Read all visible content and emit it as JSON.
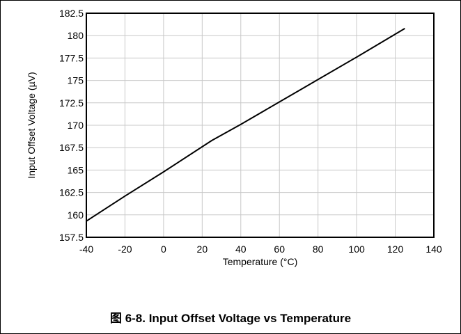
{
  "caption": "图 6-8. Input Offset Voltage vs Temperature",
  "chart_data": {
    "type": "line",
    "title": "",
    "xlabel": "Temperature (°C)",
    "ylabel": "Input Offset Voltage (µV)",
    "xlim": [
      -40,
      140
    ],
    "ylim": [
      157.5,
      182.5
    ],
    "xticks": [
      -40,
      -20,
      0,
      20,
      40,
      60,
      80,
      100,
      120,
      140
    ],
    "yticks": [
      157.5,
      160,
      162.5,
      165,
      167.5,
      170,
      172.5,
      175,
      177.5,
      180,
      182.5
    ],
    "xtick_labels": [
      "-40",
      "-20",
      "0",
      "20",
      "40",
      "60",
      "80",
      "100",
      "120",
      "140"
    ],
    "ytick_labels": [
      "157.5",
      "160",
      "162.5",
      "165",
      "167.5",
      "170",
      "172.5",
      "175",
      "177.5",
      "180",
      "182.5"
    ],
    "grid": true,
    "series": [
      {
        "color": "#000000",
        "x": [
          -40,
          -20,
          0,
          25,
          40,
          60,
          80,
          100,
          125
        ],
        "y": [
          159.3,
          162.1,
          164.8,
          168.3,
          170.1,
          172.6,
          175.1,
          177.6,
          180.8
        ]
      }
    ]
  }
}
